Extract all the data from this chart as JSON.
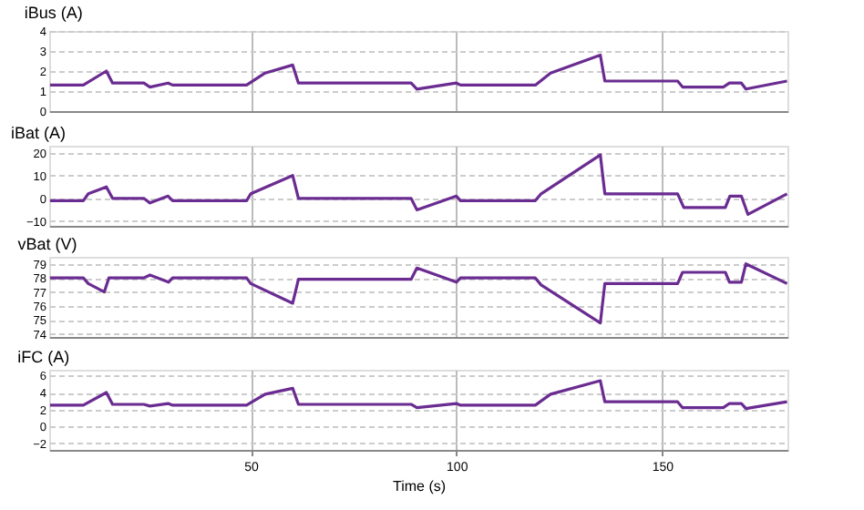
{
  "chart_data": [
    {
      "type": "line",
      "ylabel": "iBus (A)",
      "xlim": [
        1,
        180.5
      ],
      "xticks": [
        50,
        100,
        150
      ],
      "ylim": [
        0,
        4
      ],
      "yticks": [
        0,
        1,
        2,
        3,
        4
      ],
      "grid": true,
      "tick_labels": "y",
      "x": [
        1.2,
        9.3,
        14.9,
        16.4,
        24,
        25.5,
        29.9,
        31,
        49,
        53.5,
        60.2,
        61.6,
        89,
        90.4,
        100,
        101,
        119.2,
        122.9,
        135,
        136.1,
        153.8,
        155,
        164.9,
        166.4,
        169.3,
        170.4,
        180.4
      ],
      "series": [
        {
          "color": "#6a2c91",
          "values": [
            1.3,
            1.3,
            2.0,
            1.4,
            1.4,
            1.2,
            1.4,
            1.3,
            1.3,
            1.9,
            2.3,
            1.4,
            1.4,
            1.1,
            1.4,
            1.3,
            1.3,
            1.9,
            2.8,
            1.5,
            1.5,
            1.2,
            1.2,
            1.4,
            1.4,
            1.1,
            1.5
          ]
        }
      ]
    },
    {
      "type": "line",
      "ylabel": "iBat (A)",
      "xlim": [
        1,
        180.5
      ],
      "xticks": [
        50,
        100,
        150
      ],
      "ylim": [
        -12,
        23
      ],
      "yticks": [
        -10,
        0,
        10,
        20
      ],
      "grid": true,
      "tick_labels": "y",
      "x": [
        1.2,
        9.3,
        10.5,
        14.9,
        16.4,
        24,
        25.5,
        29.9,
        31,
        49,
        50,
        60.2,
        61.6,
        89,
        90.4,
        100,
        101,
        119.2,
        120.6,
        135,
        136.1,
        153.8,
        155.3,
        165.4,
        166.5,
        169.3,
        170.9,
        180.4
      ],
      "series": [
        {
          "color": "#6a2c91",
          "values": [
            -1,
            -1,
            2,
            5,
            0,
            0,
            -2,
            1,
            -1,
            -1,
            2,
            10,
            0,
            0,
            -5,
            1,
            -1,
            -1,
            2,
            19,
            2,
            2,
            -4,
            -4,
            1,
            1,
            -7,
            2
          ]
        }
      ]
    },
    {
      "type": "line",
      "ylabel": "vBat (V)",
      "xlim": [
        1,
        180.5
      ],
      "xticks": [
        50,
        100,
        150
      ],
      "ylim": [
        73.8,
        79.5
      ],
      "yticks": [
        74,
        75,
        76,
        77,
        78,
        79
      ],
      "grid": true,
      "tick_labels": "y",
      "x": [
        1.2,
        9.3,
        10.5,
        14.4,
        15.5,
        24,
        25.5,
        30,
        31,
        49,
        50,
        60.2,
        61.6,
        89,
        90.4,
        100,
        101,
        119.2,
        120.6,
        135,
        136.1,
        153.8,
        155,
        165.4,
        166.4,
        169.3,
        170.4,
        180.4
      ],
      "series": [
        {
          "color": "#6a2c91",
          "values": [
            78,
            78,
            77.6,
            77,
            78,
            78,
            78.2,
            77.7,
            78,
            78,
            77.6,
            76.2,
            77.9,
            77.9,
            78.7,
            77.7,
            78,
            78,
            77.5,
            74.8,
            77.6,
            77.6,
            78.4,
            78.4,
            77.7,
            77.7,
            79,
            77.6
          ]
        }
      ]
    },
    {
      "type": "line",
      "ylabel": "iFC (A)",
      "xlabel": "Time (s)",
      "xlim": [
        1,
        180.5
      ],
      "xticks": [
        50,
        100,
        150
      ],
      "ylim": [
        -2.8,
        6.7
      ],
      "yticks": [
        -2,
        0,
        2,
        4,
        6
      ],
      "grid": true,
      "x": [
        1.2,
        9.3,
        14.9,
        16.4,
        24,
        25.5,
        29.9,
        31,
        49,
        50,
        53.5,
        60.2,
        61.6,
        89,
        90.4,
        100,
        101,
        119.2,
        122.9,
        135,
        136.1,
        153.8,
        155,
        164.9,
        166.4,
        169.3,
        170.4,
        180.4
      ],
      "series": [
        {
          "color": "#6a2c91",
          "values": [
            2.5,
            2.5,
            4,
            2.6,
            2.6,
            2.4,
            2.7,
            2.5,
            2.5,
            2.8,
            3.8,
            4.5,
            2.6,
            2.6,
            2.2,
            2.7,
            2.5,
            2.5,
            3.8,
            5.4,
            2.9,
            2.9,
            2.2,
            2.2,
            2.7,
            2.7,
            2.1,
            2.9
          ]
        }
      ]
    }
  ]
}
